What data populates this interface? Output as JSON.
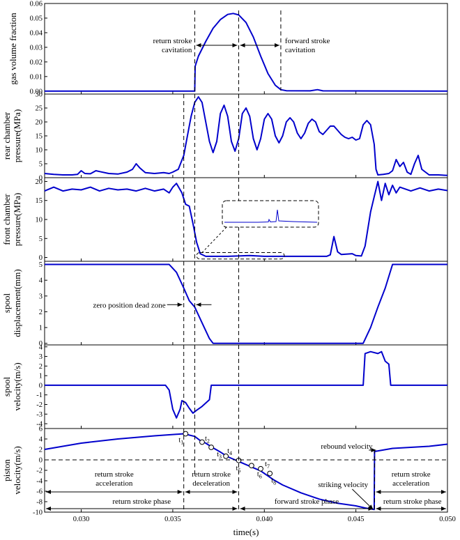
{
  "chart_data": {
    "type": "line",
    "x_axis": {
      "label": "time(s)",
      "range": [
        0.028,
        0.05
      ],
      "ticks": [
        0.03,
        0.035,
        0.04,
        0.045,
        0.05
      ],
      "tick_labels": [
        "0.030",
        "0.035",
        "0.040",
        "0.045",
        "0.050"
      ]
    },
    "series_color": "#0000cc",
    "grid": false,
    "panels": [
      {
        "id": "gas",
        "ylabel": [
          "gas volume fraction"
        ],
        "ylim": [
          -0.002,
          0.06
        ],
        "ticks": [
          0,
          0.01,
          0.02,
          0.03,
          0.04,
          0.05,
          0.06
        ],
        "tick_labels": [
          "0.00",
          "0.01",
          "0.02",
          "0.03",
          "0.04",
          "0.05",
          "0.06"
        ],
        "points": [
          [
            0.028,
            0
          ],
          [
            0.0362,
            0
          ],
          [
            0.03622,
            0.017
          ],
          [
            0.0364,
            0.024
          ],
          [
            0.0368,
            0.034
          ],
          [
            0.0372,
            0.043
          ],
          [
            0.0376,
            0.049
          ],
          [
            0.038,
            0.0525
          ],
          [
            0.0383,
            0.0532
          ],
          [
            0.0386,
            0.0522
          ],
          [
            0.039,
            0.047
          ],
          [
            0.0394,
            0.037
          ],
          [
            0.0398,
            0.024
          ],
          [
            0.0402,
            0.012
          ],
          [
            0.0406,
            0.004
          ],
          [
            0.0409,
            0.001
          ],
          [
            0.0412,
            0.0003
          ],
          [
            0.0425,
            0.0002
          ],
          [
            0.0429,
            0.001
          ],
          [
            0.0432,
            0.0002
          ],
          [
            0.05,
            0
          ]
        ]
      },
      {
        "id": "rear",
        "ylabel": [
          "rear chamber",
          "pressure(MPa)"
        ],
        "ylim": [
          0,
          30
        ],
        "ticks": [
          0,
          5,
          10,
          15,
          20,
          25,
          30
        ],
        "tick_labels": [
          "0",
          "5",
          "10",
          "15",
          "20",
          "25",
          "30"
        ],
        "points": [
          [
            0.028,
            1.5
          ],
          [
            0.0285,
            1.2
          ],
          [
            0.029,
            1.0
          ],
          [
            0.0295,
            1.0
          ],
          [
            0.0298,
            1.2
          ],
          [
            0.03,
            2.5
          ],
          [
            0.0302,
            1.5
          ],
          [
            0.0305,
            1.4
          ],
          [
            0.0308,
            2.5
          ],
          [
            0.031,
            2.2
          ],
          [
            0.0315,
            1.5
          ],
          [
            0.032,
            1.3
          ],
          [
            0.0325,
            2.0
          ],
          [
            0.0328,
            3.0
          ],
          [
            0.033,
            5.0
          ],
          [
            0.0332,
            3.5
          ],
          [
            0.0335,
            1.8
          ],
          [
            0.034,
            1.5
          ],
          [
            0.0345,
            1.8
          ],
          [
            0.0348,
            1.5
          ],
          [
            0.035,
            2.0
          ],
          [
            0.0353,
            3.0
          ],
          [
            0.0356,
            8.0
          ],
          [
            0.0358,
            15.0
          ],
          [
            0.036,
            22.0
          ],
          [
            0.0362,
            27.0
          ],
          [
            0.0364,
            29.0
          ],
          [
            0.0366,
            27.0
          ],
          [
            0.0368,
            20.0
          ],
          [
            0.037,
            13.0
          ],
          [
            0.0372,
            9.0
          ],
          [
            0.0374,
            13.0
          ],
          [
            0.0376,
            23.0
          ],
          [
            0.0378,
            26.0
          ],
          [
            0.038,
            22.0
          ],
          [
            0.0382,
            13.0
          ],
          [
            0.0384,
            9.5
          ],
          [
            0.0386,
            14.0
          ],
          [
            0.0388,
            23.0
          ],
          [
            0.039,
            25.0
          ],
          [
            0.0392,
            22.0
          ],
          [
            0.0394,
            14.0
          ],
          [
            0.0396,
            10.0
          ],
          [
            0.0398,
            14.0
          ],
          [
            0.04,
            21.0
          ],
          [
            0.0402,
            23.0
          ],
          [
            0.0404,
            21.0
          ],
          [
            0.0406,
            15.0
          ],
          [
            0.0408,
            12.5
          ],
          [
            0.041,
            15.0
          ],
          [
            0.0412,
            20.0
          ],
          [
            0.0414,
            21.5
          ],
          [
            0.0416,
            20.0
          ],
          [
            0.0418,
            16.0
          ],
          [
            0.042,
            14.0
          ],
          [
            0.0422,
            16.0
          ],
          [
            0.0424,
            19.5
          ],
          [
            0.0426,
            21.0
          ],
          [
            0.0428,
            20.0
          ],
          [
            0.043,
            16.5
          ],
          [
            0.0432,
            15.5
          ],
          [
            0.0434,
            17.0
          ],
          [
            0.0436,
            18.5
          ],
          [
            0.0438,
            18.5
          ],
          [
            0.044,
            17.0
          ],
          [
            0.0442,
            15.5
          ],
          [
            0.0444,
            14.5
          ],
          [
            0.0446,
            14.0
          ],
          [
            0.0448,
            14.5
          ],
          [
            0.045,
            13.5
          ],
          [
            0.0452,
            14.0
          ],
          [
            0.0454,
            19.0
          ],
          [
            0.0456,
            20.5
          ],
          [
            0.0458,
            19.0
          ],
          [
            0.046,
            12.0
          ],
          [
            0.0461,
            3.0
          ],
          [
            0.0462,
            1.0
          ],
          [
            0.0465,
            1.2
          ],
          [
            0.0468,
            1.5
          ],
          [
            0.047,
            2.5
          ],
          [
            0.0472,
            6.5
          ],
          [
            0.0474,
            4.0
          ],
          [
            0.0476,
            5.5
          ],
          [
            0.0478,
            2.0
          ],
          [
            0.048,
            1.2
          ],
          [
            0.0482,
            5.0
          ],
          [
            0.0484,
            8.0
          ],
          [
            0.0486,
            3.0
          ],
          [
            0.049,
            1.0
          ],
          [
            0.0495,
            1.0
          ],
          [
            0.05,
            0.8
          ]
        ]
      },
      {
        "id": "front",
        "ylabel": [
          "front chamber",
          "pressure(MPa)"
        ],
        "ylim": [
          -1,
          21
        ],
        "ticks": [
          0,
          5,
          10,
          15,
          20
        ],
        "tick_labels": [
          "0",
          "5",
          "10",
          "15",
          "20"
        ],
        "points": [
          [
            0.028,
            17.5
          ],
          [
            0.0285,
            18.5
          ],
          [
            0.029,
            17.5
          ],
          [
            0.0295,
            18.0
          ],
          [
            0.03,
            17.8
          ],
          [
            0.0305,
            18.5
          ],
          [
            0.031,
            17.5
          ],
          [
            0.0315,
            18.2
          ],
          [
            0.032,
            17.8
          ],
          [
            0.0325,
            18.0
          ],
          [
            0.033,
            17.5
          ],
          [
            0.0335,
            18.2
          ],
          [
            0.034,
            17.5
          ],
          [
            0.0345,
            18.0
          ],
          [
            0.0348,
            17.0
          ],
          [
            0.035,
            18.5
          ],
          [
            0.0352,
            19.5
          ],
          [
            0.0355,
            17.0
          ],
          [
            0.0357,
            14.0
          ],
          [
            0.0359,
            13.5
          ],
          [
            0.0361,
            9.0
          ],
          [
            0.0363,
            4.0
          ],
          [
            0.0365,
            1.0
          ],
          [
            0.0368,
            0.3
          ],
          [
            0.038,
            0.3
          ],
          [
            0.0392,
            0.5
          ],
          [
            0.04,
            0.3
          ],
          [
            0.042,
            0.3
          ],
          [
            0.0434,
            0.3
          ],
          [
            0.0436,
            0.7
          ],
          [
            0.0438,
            5.5
          ],
          [
            0.044,
            1.5
          ],
          [
            0.0442,
            0.8
          ],
          [
            0.0448,
            1.0
          ],
          [
            0.045,
            0.5
          ],
          [
            0.0453,
            0.4
          ],
          [
            0.0455,
            3.0
          ],
          [
            0.0458,
            12.0
          ],
          [
            0.046,
            16.0
          ],
          [
            0.0462,
            20.0
          ],
          [
            0.0464,
            15.0
          ],
          [
            0.0466,
            19.5
          ],
          [
            0.0468,
            16.5
          ],
          [
            0.047,
            19.0
          ],
          [
            0.0472,
            17.0
          ],
          [
            0.0474,
            18.5
          ],
          [
            0.048,
            17.5
          ],
          [
            0.0485,
            18.3
          ],
          [
            0.049,
            17.5
          ],
          [
            0.0495,
            18.0
          ],
          [
            0.05,
            17.6
          ]
        ]
      },
      {
        "id": "spool_disp",
        "ylabel": [
          "spool",
          "displacement(mm)"
        ],
        "ylim": [
          -0.1,
          5.2
        ],
        "ticks": [
          0,
          1,
          2,
          3,
          4,
          5
        ],
        "tick_labels": [
          "0",
          "1",
          "2",
          "3",
          "4",
          "5"
        ],
        "points": [
          [
            0.028,
            5
          ],
          [
            0.0348,
            5
          ],
          [
            0.0352,
            4.5
          ],
          [
            0.0356,
            3.5
          ],
          [
            0.0359,
            2.7
          ],
          [
            0.0362,
            2.3
          ],
          [
            0.0366,
            1.3
          ],
          [
            0.037,
            0.3
          ],
          [
            0.0372,
            0
          ],
          [
            0.0454,
            0
          ],
          [
            0.0458,
            1.0
          ],
          [
            0.0462,
            2.3
          ],
          [
            0.0466,
            3.5
          ],
          [
            0.047,
            5
          ],
          [
            0.05,
            5
          ]
        ]
      },
      {
        "id": "spool_vel",
        "ylabel": [
          "spool",
          "velocity(m/s)"
        ],
        "ylim": [
          -4.5,
          4.2
        ],
        "ticks": [
          -4,
          -3,
          -2,
          -1,
          0,
          1,
          2,
          3,
          4
        ],
        "tick_labels": [
          "-4",
          "-3",
          "-2",
          "-1",
          "0",
          "1",
          "2",
          "3",
          "4"
        ],
        "points": [
          [
            0.028,
            0
          ],
          [
            0.0346,
            0
          ],
          [
            0.0348,
            -0.5
          ],
          [
            0.035,
            -2.5
          ],
          [
            0.0352,
            -3.4
          ],
          [
            0.0354,
            -2.5
          ],
          [
            0.0355,
            -1.6
          ],
          [
            0.0357,
            -1.8
          ],
          [
            0.0359,
            -2.4
          ],
          [
            0.0361,
            -2.9
          ],
          [
            0.0363,
            -2.6
          ],
          [
            0.0366,
            -2.2
          ],
          [
            0.037,
            -1.5
          ],
          [
            0.0371,
            0
          ],
          [
            0.0454,
            0
          ],
          [
            0.0455,
            3.3
          ],
          [
            0.0458,
            3.5
          ],
          [
            0.0462,
            3.3
          ],
          [
            0.0464,
            3.5
          ],
          [
            0.0466,
            2.5
          ],
          [
            0.0468,
            2.2
          ],
          [
            0.0469,
            0
          ],
          [
            0.05,
            0
          ]
        ]
      },
      {
        "id": "piston_vel",
        "ylabel": [
          "piston",
          "velocity(m/s)"
        ],
        "ylim": [
          -10,
          6
        ],
        "ticks": [
          -10,
          -8,
          -6,
          -4,
          -2,
          0,
          2,
          4,
          6
        ],
        "tick_labels": [
          "-10",
          "-8",
          "-6",
          "-4",
          "-2",
          "0",
          "2",
          "4",
          "6"
        ],
        "points": [
          [
            0.028,
            2.0
          ],
          [
            0.03,
            3.2
          ],
          [
            0.032,
            4.0
          ],
          [
            0.034,
            4.6
          ],
          [
            0.0356,
            5.0
          ],
          [
            0.0362,
            4.5
          ],
          [
            0.0365,
            3.7
          ],
          [
            0.0368,
            3.2
          ],
          [
            0.0372,
            2.3
          ],
          [
            0.0376,
            1.5
          ],
          [
            0.038,
            0.6
          ],
          [
            0.0384,
            0
          ],
          [
            0.0386,
            -0.3
          ],
          [
            0.039,
            -0.9
          ],
          [
            0.0394,
            -1.5
          ],
          [
            0.0398,
            -2.1
          ],
          [
            0.04,
            -2.6
          ],
          [
            0.0405,
            -3.8
          ],
          [
            0.041,
            -4.8
          ],
          [
            0.042,
            -6.3
          ],
          [
            0.043,
            -7.5
          ],
          [
            0.044,
            -8.3
          ],
          [
            0.045,
            -8.8
          ],
          [
            0.0455,
            -9.2
          ],
          [
            0.046,
            -9.5
          ],
          [
            0.04602,
            1.6
          ],
          [
            0.047,
            2.2
          ],
          [
            0.048,
            2.4
          ],
          [
            0.049,
            2.6
          ],
          [
            0.05,
            3.0
          ]
        ],
        "markers": [
          {
            "label": "t1",
            "x": 0.0357,
            "y": 5.0
          },
          {
            "label": "t2",
            "x": 0.0366,
            "y": 3.4
          },
          {
            "label": "t3",
            "x": 0.0371,
            "y": 2.4
          },
          {
            "label": "t4",
            "x": 0.0379,
            "y": 0.7
          },
          {
            "label": "t5",
            "x": 0.0386,
            "y": -0.1
          },
          {
            "label": "t6",
            "x": 0.0393,
            "y": -1.1
          },
          {
            "label": "t7",
            "x": 0.0398,
            "y": -1.7
          },
          {
            "label": "t8",
            "x": 0.0403,
            "y": -2.6
          }
        ]
      }
    ]
  },
  "vlines_x": [
    0.0356,
    0.0362,
    0.0386,
    0.0409
  ],
  "annotations": {
    "return_cavitation": [
      "return stroke",
      "cavitation"
    ],
    "forward_cavitation": [
      "forward stroke",
      "cavitation"
    ],
    "dead_zone": "zero position dead zone",
    "return_accel": [
      "return stroke",
      "acceleration"
    ],
    "return_decel": [
      "return stroke",
      "deceleration"
    ],
    "return_accel_2": [
      "return stroke",
      "acceleration"
    ],
    "return_phase": "return stroke phase",
    "forward_phase": "forward stroke phase",
    "return_phase_2": "return stroke phase",
    "rebound": "rebound velocity",
    "striking": "striking velocity"
  }
}
